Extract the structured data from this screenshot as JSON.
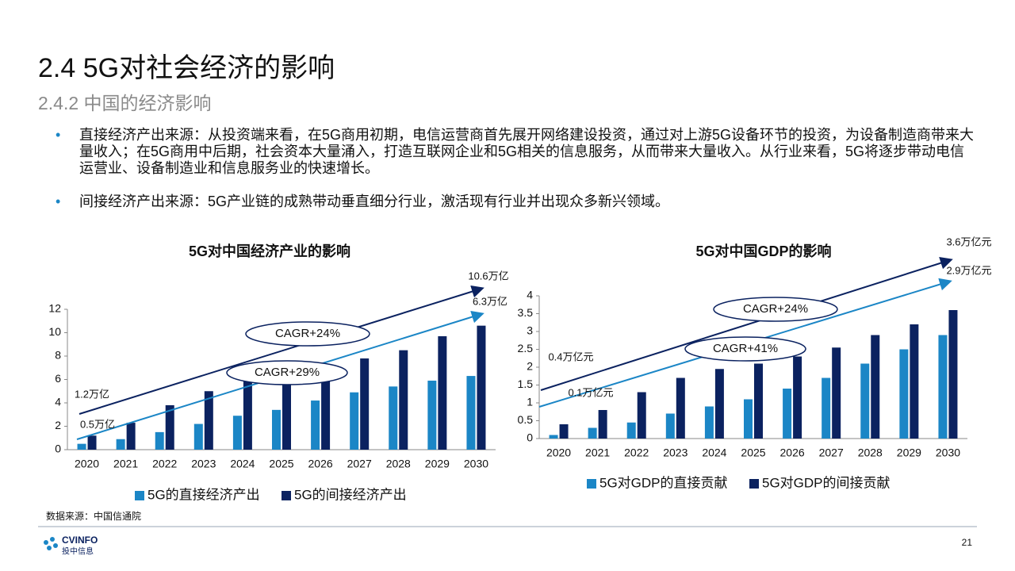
{
  "header": {
    "title": "2.4 5G对社会经济的影响",
    "subtitle": "2.4.2 中国的经济影响"
  },
  "bullets": [
    "直接经济产出来源：从投资端来看，在5G商用初期，电信运营商首先展开网络建设投资，通过对上游5G设备环节的投资，为设备制造商带来大量收入；在5G商用中后期，社会资本大量涌入，打造互联网企业和5G相关的信息服务，从而带来大量收入。从行业来看，5G将逐步带动电信运营业、设备制造业和信息服务业的快速增长。",
    "间接经济产出来源：5G产业链的成熟带动垂直细分行业，激活现有行业并出现众多新兴领域。"
  ],
  "chart_data": [
    {
      "type": "bar",
      "title": "5G对中国经济产业的影响",
      "categories": [
        "2020",
        "2021",
        "2022",
        "2023",
        "2024",
        "2025",
        "2026",
        "2027",
        "2028",
        "2029",
        "2030"
      ],
      "series": [
        {
          "name": "5G的直接经济产出",
          "color": "#1b86c6",
          "values": [
            0.5,
            0.9,
            1.5,
            2.2,
            2.9,
            3.4,
            4.2,
            4.9,
            5.4,
            5.9,
            6.3
          ]
        },
        {
          "name": "5G的间接经济产出",
          "color": "#0b2260",
          "values": [
            1.2,
            2.3,
            3.8,
            5.0,
            5.9,
            6.3,
            6.8,
            7.8,
            8.5,
            9.7,
            10.6
          ]
        }
      ],
      "ylim": [
        0,
        12
      ],
      "yticks": [
        0,
        2,
        4,
        6,
        8,
        10,
        12
      ],
      "annotations": [
        {
          "text": "10.6万亿"
        },
        {
          "text": "6.3万亿"
        },
        {
          "text": "1.2万亿"
        },
        {
          "text": "0.5万亿"
        },
        {
          "text": "CAGR+24%"
        },
        {
          "text": "CAGR+29%"
        }
      ]
    },
    {
      "type": "bar",
      "title": "5G对中国GDP的影响",
      "categories": [
        "2020",
        "2021",
        "2022",
        "2023",
        "2024",
        "2025",
        "2026",
        "2027",
        "2028",
        "2029",
        "2030"
      ],
      "series": [
        {
          "name": "5G对GDP的直接贡献",
          "color": "#1b86c6",
          "values": [
            0.1,
            0.3,
            0.45,
            0.7,
            0.9,
            1.1,
            1.4,
            1.7,
            2.1,
            2.5,
            2.9
          ]
        },
        {
          "name": "5G对GDP的间接贡献",
          "color": "#0b2260",
          "values": [
            0.4,
            0.8,
            1.3,
            1.7,
            1.95,
            2.1,
            2.3,
            2.55,
            2.9,
            3.2,
            3.6
          ]
        }
      ],
      "ylim": [
        0,
        4
      ],
      "yticks": [
        0,
        0.5,
        1,
        1.5,
        2,
        2.5,
        3,
        3.5,
        4
      ],
      "annotations": [
        {
          "text": "3.6万亿元"
        },
        {
          "text": "2.9万亿元"
        },
        {
          "text": "0.4万亿元"
        },
        {
          "text": "0.1万亿元"
        },
        {
          "text": "CAGR+24%"
        },
        {
          "text": "CAGR+41%"
        }
      ]
    }
  ],
  "footer": {
    "source": "数据来源：中国信通院",
    "logo": "CVINFO",
    "logo_sub": "投中信息",
    "page": "21"
  }
}
